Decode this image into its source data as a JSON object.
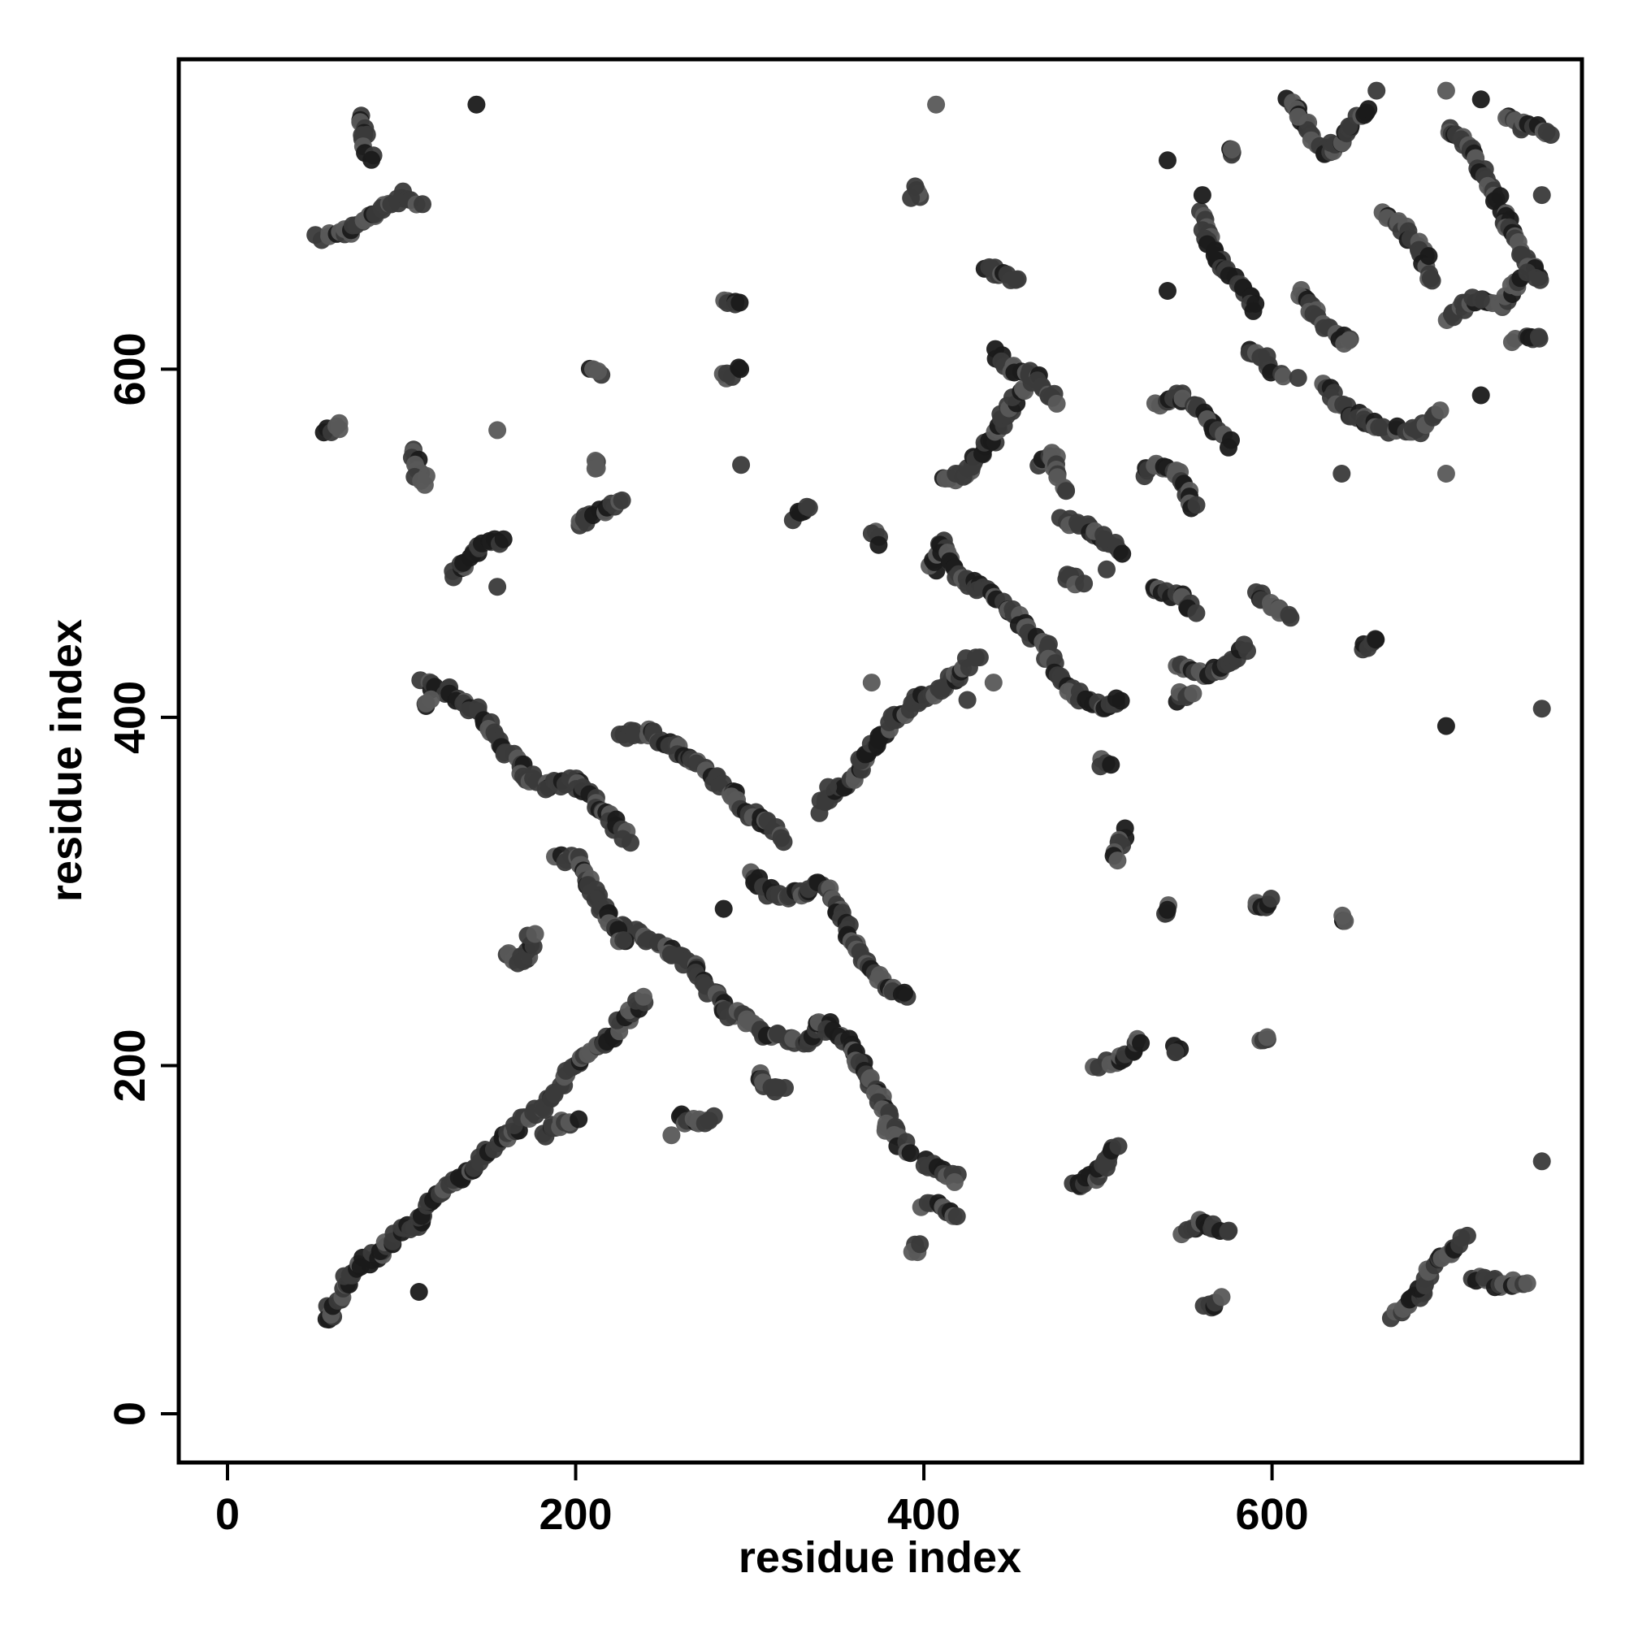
{
  "chart_data": {
    "type": "scatter",
    "title": "",
    "xlabel": "residue index",
    "ylabel": "residue index",
    "xlim": [
      -28,
      778
    ],
    "ylim": [
      -28,
      778
    ],
    "x_ticks": [
      0,
      200,
      400,
      600
    ],
    "y_ticks": [
      0,
      200,
      400,
      600
    ],
    "x_tick_labels": [
      "0",
      "200",
      "400",
      "600"
    ],
    "y_tick_labels": [
      "0",
      "200",
      "400",
      "600"
    ],
    "grid": false,
    "legend": "none",
    "colors": {
      "dark": "#1a1a1a",
      "mid": "#3a3a3a",
      "light": "#595959",
      "frame": "#000000"
    },
    "segments": [
      [
        [
          53,
          675
        ],
        [
          70,
          680
        ],
        [
          85,
          690
        ],
        [
          100,
          700
        ],
        [
          110,
          695
        ]
      ],
      [
        [
          75,
          745
        ],
        [
          78,
          735
        ],
        [
          82,
          722
        ]
      ],
      [
        [
          130,
          480
        ],
        [
          140,
          495
        ],
        [
          155,
          500
        ],
        [
          160,
          502
        ]
      ],
      [
        [
          113,
          420
        ],
        [
          125,
          415
        ],
        [
          140,
          405
        ],
        [
          150,
          395
        ],
        [
          160,
          380
        ],
        [
          175,
          365
        ],
        [
          185,
          360
        ],
        [
          200,
          365
        ],
        [
          215,
          345
        ],
        [
          230,
          330
        ]
      ],
      [
        [
          112,
          405
        ],
        [
          115,
          410
        ]
      ],
      [
        [
          105,
          555
        ],
        [
          110,
          540
        ],
        [
          115,
          535
        ]
      ],
      [
        [
          55,
          565
        ],
        [
          65,
          568
        ]
      ],
      [
        [
          200,
          510
        ],
        [
          215,
          520
        ],
        [
          225,
          525
        ]
      ],
      [
        [
          210,
          545
        ]
      ],
      [
        [
          210,
          598
        ],
        [
          215,
          600
        ]
      ],
      [
        [
          55,
          60
        ],
        [
          60,
          55
        ],
        [
          70,
          80
        ],
        [
          80,
          88
        ],
        [
          90,
          95
        ],
        [
          100,
          105
        ],
        [
          110,
          110
        ],
        [
          115,
          120
        ],
        [
          125,
          130
        ],
        [
          140,
          140
        ],
        [
          150,
          150
        ],
        [
          160,
          160
        ],
        [
          170,
          170
        ],
        [
          180,
          175
        ],
        [
          195,
          195
        ],
        [
          205,
          205
        ],
        [
          220,
          215
        ],
        [
          230,
          230
        ],
        [
          240,
          240
        ]
      ],
      [
        [
          180,
          160
        ],
        [
          190,
          165
        ],
        [
          200,
          170
        ]
      ],
      [
        [
          225,
          390
        ],
        [
          240,
          392
        ],
        [
          255,
          385
        ],
        [
          265,
          375
        ],
        [
          280,
          365
        ],
        [
          290,
          355
        ],
        [
          300,
          345
        ],
        [
          310,
          340
        ],
        [
          320,
          330
        ]
      ],
      [
        [
          225,
          280
        ],
        [
          240,
          275
        ],
        [
          255,
          265
        ],
        [
          270,
          255
        ],
        [
          280,
          240
        ],
        [
          290,
          230
        ],
        [
          300,
          225
        ],
        [
          310,
          218
        ],
        [
          325,
          215
        ],
        [
          335,
          215
        ],
        [
          345,
          225
        ]
      ],
      [
        [
          160,
          265
        ],
        [
          170,
          260
        ],
        [
          175,
          275
        ]
      ],
      [
        [
          190,
          320
        ],
        [
          200,
          318
        ],
        [
          210,
          300
        ],
        [
          220,
          285
        ],
        [
          228,
          270
        ]
      ],
      [
        [
          300,
          310
        ],
        [
          310,
          300
        ],
        [
          320,
          295
        ],
        [
          330,
          300
        ],
        [
          340,
          305
        ],
        [
          350,
          290
        ],
        [
          360,
          270
        ],
        [
          370,
          255
        ],
        [
          380,
          245
        ],
        [
          390,
          240
        ]
      ],
      [
        [
          340,
          350
        ],
        [
          355,
          360
        ],
        [
          365,
          375
        ],
        [
          375,
          390
        ],
        [
          385,
          400
        ],
        [
          395,
          410
        ],
        [
          410,
          415
        ],
        [
          420,
          425
        ],
        [
          430,
          435
        ]
      ],
      [
        [
          340,
          225
        ],
        [
          355,
          215
        ],
        [
          365,
          200
        ],
        [
          370,
          190
        ],
        [
          375,
          180
        ],
        [
          380,
          165
        ],
        [
          390,
          150
        ]
      ],
      [
        [
          260,
          170
        ],
        [
          270,
          168
        ],
        [
          280,
          170
        ]
      ],
      [
        [
          305,
          195
        ],
        [
          310,
          190
        ],
        [
          320,
          185
        ]
      ],
      [
        [
          400,
          145
        ],
        [
          410,
          140
        ],
        [
          420,
          135
        ]
      ],
      [
        [
          400,
          120
        ],
        [
          410,
          118
        ],
        [
          420,
          115
        ]
      ],
      [
        [
          395,
          95
        ]
      ],
      [
        [
          285,
          640
        ],
        [
          295,
          638
        ]
      ],
      [
        [
          285,
          595
        ],
        [
          295,
          600
        ]
      ],
      [
        [
          325,
          515
        ],
        [
          335,
          520
        ]
      ],
      [
        [
          370,
          505
        ],
        [
          375,
          500
        ]
      ],
      [
        [
          395,
          700
        ]
      ],
      [
        [
          405,
          485
        ],
        [
          410,
          500
        ],
        [
          420,
          480
        ],
        [
          430,
          475
        ],
        [
          440,
          470
        ],
        [
          450,
          460
        ],
        [
          460,
          450
        ],
        [
          470,
          440
        ],
        [
          475,
          425
        ],
        [
          485,
          415
        ],
        [
          495,
          410
        ],
        [
          505,
          405
        ],
        [
          515,
          410
        ]
      ],
      [
        [
          410,
          535
        ],
        [
          425,
          540
        ],
        [
          430,
          550
        ],
        [
          440,
          560
        ],
        [
          450,
          580
        ],
        [
          460,
          590
        ]
      ],
      [
        [
          435,
          660
        ],
        [
          445,
          655
        ],
        [
          455,
          650
        ]
      ],
      [
        [
          440,
          610
        ],
        [
          450,
          600
        ],
        [
          465,
          595
        ],
        [
          475,
          580
        ]
      ],
      [
        [
          465,
          545
        ],
        [
          475,
          550
        ],
        [
          480,
          530
        ]
      ],
      [
        [
          480,
          515
        ],
        [
          490,
          510
        ],
        [
          500,
          505
        ],
        [
          515,
          495
        ]
      ],
      [
        [
          480,
          480
        ],
        [
          490,
          478
        ]
      ],
      [
        [
          500,
          375
        ],
        [
          505,
          372
        ]
      ],
      [
        [
          515,
          335
        ],
        [
          510,
          320
        ]
      ],
      [
        [
          500,
          200
        ],
        [
          515,
          205
        ],
        [
          525,
          215
        ]
      ],
      [
        [
          485,
          130
        ],
        [
          495,
          135
        ],
        [
          505,
          145
        ],
        [
          510,
          155
        ]
      ],
      [
        [
          525,
          540
        ],
        [
          535,
          545
        ],
        [
          545,
          540
        ],
        [
          555,
          520
        ]
      ],
      [
        [
          530,
          475
        ],
        [
          545,
          470
        ],
        [
          555,
          460
        ]
      ],
      [
        [
          535,
          580
        ],
        [
          545,
          585
        ],
        [
          555,
          580
        ],
        [
          565,
          570
        ],
        [
          575,
          560
        ]
      ],
      [
        [
          545,
          430
        ],
        [
          560,
          425
        ],
        [
          575,
          430
        ],
        [
          585,
          440
        ]
      ],
      [
        [
          545,
          410
        ],
        [
          555,
          415
        ]
      ],
      [
        [
          560,
          690
        ],
        [
          565,
          670
        ],
        [
          575,
          655
        ],
        [
          585,
          645
        ],
        [
          590,
          635
        ]
      ],
      [
        [
          575,
          725
        ]
      ],
      [
        [
          585,
          610
        ],
        [
          595,
          605
        ],
        [
          605,
          595
        ]
      ],
      [
        [
          590,
          470
        ],
        [
          600,
          465
        ],
        [
          610,
          455
        ]
      ],
      [
        [
          590,
          290
        ],
        [
          600,
          295
        ]
      ],
      [
        [
          595,
          215
        ]
      ],
      [
        [
          615,
          645
        ],
        [
          625,
          630
        ],
        [
          635,
          620
        ],
        [
          645,
          615
        ]
      ],
      [
        [
          610,
          755
        ],
        [
          620,
          740
        ],
        [
          630,
          725
        ],
        [
          640,
          730
        ],
        [
          645,
          740
        ],
        [
          655,
          750
        ]
      ],
      [
        [
          630,
          590
        ],
        [
          645,
          575
        ],
        [
          655,
          570
        ],
        [
          670,
          565
        ],
        [
          685,
          565
        ],
        [
          695,
          575
        ]
      ],
      [
        [
          650,
          440
        ],
        [
          660,
          445
        ]
      ],
      [
        [
          640,
          285
        ]
      ],
      [
        [
          665,
          690
        ],
        [
          675,
          680
        ],
        [
          685,
          670
        ],
        [
          690,
          650
        ]
      ],
      [
        [
          670,
          55
        ],
        [
          685,
          70
        ],
        [
          695,
          90
        ],
        [
          710,
          100
        ]
      ],
      [
        [
          715,
          80
        ],
        [
          730,
          75
        ],
        [
          745,
          75
        ]
      ],
      [
        [
          700,
          740
        ],
        [
          715,
          725
        ],
        [
          725,
          705
        ],
        [
          735,
          685
        ],
        [
          745,
          665
        ],
        [
          755,
          650
        ]
      ],
      [
        [
          735,
          745
        ],
        [
          745,
          740
        ],
        [
          760,
          735
        ]
      ],
      [
        [
          700,
          630
        ],
        [
          715,
          640
        ],
        [
          730,
          635
        ],
        [
          745,
          655
        ]
      ],
      [
        [
          740,
          615
        ],
        [
          755,
          620
        ]
      ],
      [
        [
          550,
          105
        ],
        [
          560,
          110
        ],
        [
          575,
          105
        ]
      ],
      [
        [
          560,
          60
        ],
        [
          570,
          65
        ]
      ],
      [
        [
          545,
          210
        ]
      ],
      [
        [
          540,
          290
        ]
      ]
    ],
    "points": [
      [
        143,
        752
      ],
      [
        407,
        752
      ],
      [
        395,
        705
      ],
      [
        540,
        720
      ],
      [
        700,
        395
      ],
      [
        755,
        405
      ],
      [
        755,
        145
      ],
      [
        700,
        540
      ],
      [
        720,
        585
      ],
      [
        640,
        540
      ],
      [
        540,
        645
      ],
      [
        295,
        545
      ],
      [
        155,
        475
      ],
      [
        155,
        565
      ],
      [
        210,
        600
      ],
      [
        340,
        345
      ],
      [
        345,
        360
      ],
      [
        425,
        410
      ],
      [
        370,
        420
      ],
      [
        285,
        290
      ],
      [
        255,
        160
      ],
      [
        440,
        420
      ],
      [
        110,
        70
      ],
      [
        170,
        260
      ],
      [
        505,
        485
      ],
      [
        575,
        555
      ],
      [
        700,
        760
      ],
      [
        690,
        665
      ],
      [
        720,
        755
      ],
      [
        755,
        700
      ],
      [
        615,
        595
      ],
      [
        560,
        700
      ],
      [
        720,
        640
      ],
      [
        615,
        745
      ],
      [
        660,
        760
      ]
    ]
  }
}
